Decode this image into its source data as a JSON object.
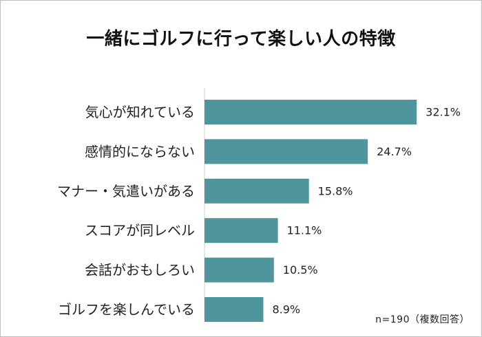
{
  "chart_data": {
    "type": "bar",
    "orientation": "horizontal",
    "title": "一緒にゴルフに行って楽しい人の特徴",
    "categories": [
      "気心が知れている",
      "感情的にならない",
      "マナー・気遣いがある",
      "スコアが同レベル",
      "会話がおもしろい",
      "ゴルフを楽しんでいる"
    ],
    "values": [
      32.1,
      24.7,
      15.8,
      11.1,
      10.5,
      8.9
    ],
    "value_labels": [
      "32.1%",
      "24.7%",
      "15.8%",
      "11.1%",
      "10.5%",
      "8.9%"
    ],
    "unit": "%",
    "xlim": [
      0,
      35
    ],
    "grid": false,
    "bar_color": "#4e959d",
    "note": "n=190（複数回答）"
  }
}
